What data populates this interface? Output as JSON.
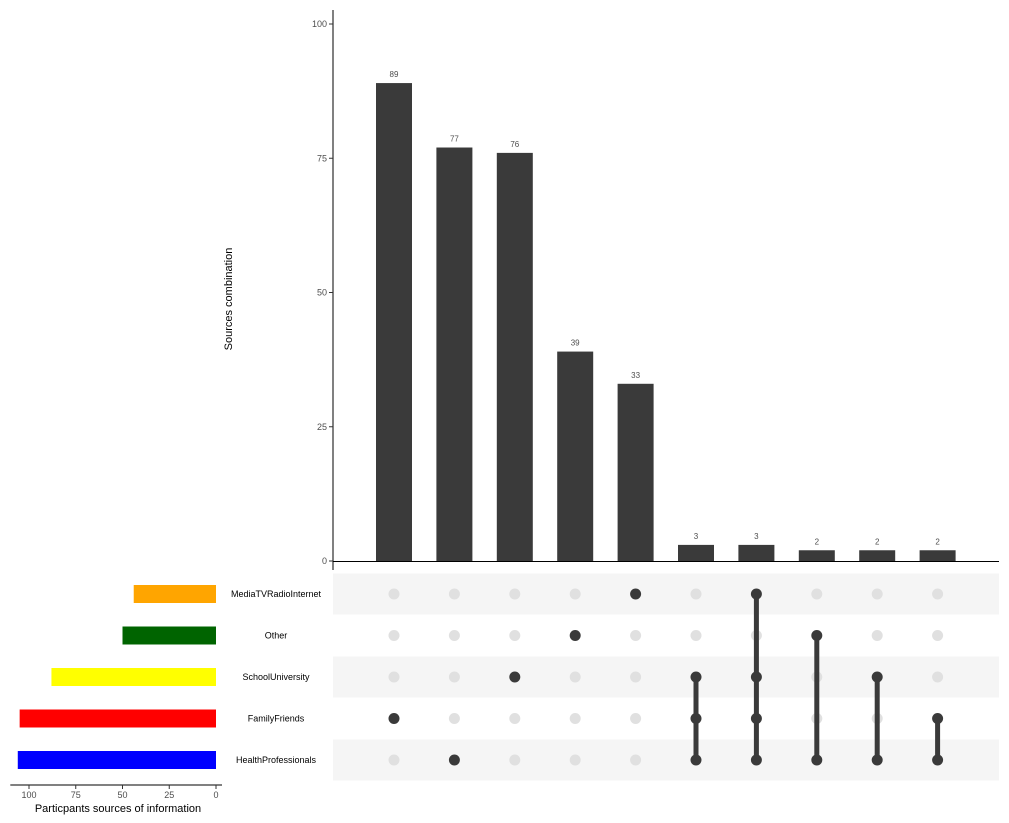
{
  "chart_data": {
    "type": "upset",
    "ylabel": "Sources combination",
    "ylim": [
      0,
      100
    ],
    "yticks": [
      0,
      25,
      50,
      75,
      100
    ],
    "sets": [
      {
        "name": "MediaTVRadioInternet",
        "size": 44,
        "color": "#FFA500"
      },
      {
        "name": "Other",
        "size": 50,
        "color": "#006400"
      },
      {
        "name": "SchoolUniversity",
        "size": 88,
        "color": "#FFFF00"
      },
      {
        "name": "FamilyFriends",
        "size": 105,
        "color": "#FF0000"
      },
      {
        "name": "HealthProfessionals",
        "size": 106,
        "color": "#0000FF"
      }
    ],
    "set_size_xlabel": "Particpants sources of information",
    "set_size_ticks": [
      100,
      75,
      50,
      25,
      0
    ],
    "set_size_xlim": [
      0,
      110
    ],
    "intersections": [
      {
        "value": 89,
        "sets": [
          "FamilyFriends"
        ]
      },
      {
        "value": 77,
        "sets": [
          "HealthProfessionals"
        ]
      },
      {
        "value": 76,
        "sets": [
          "SchoolUniversity"
        ]
      },
      {
        "value": 39,
        "sets": [
          "Other"
        ]
      },
      {
        "value": 33,
        "sets": [
          "MediaTVRadioInternet"
        ]
      },
      {
        "value": 3,
        "sets": [
          "SchoolUniversity",
          "FamilyFriends",
          "HealthProfessionals"
        ]
      },
      {
        "value": 3,
        "sets": [
          "MediaTVRadioInternet",
          "SchoolUniversity",
          "FamilyFriends",
          "HealthProfessionals"
        ]
      },
      {
        "value": 2,
        "sets": [
          "Other",
          "HealthProfessionals"
        ]
      },
      {
        "value": 2,
        "sets": [
          "SchoolUniversity",
          "HealthProfessionals"
        ]
      },
      {
        "value": 2,
        "sets": [
          "FamilyFriends",
          "HealthProfessionals"
        ]
      }
    ],
    "bar_color": "#3a3a3a",
    "dot_inactive_color": "#e0e0e0",
    "matrix_stripe_color": "#f5f5f5"
  }
}
